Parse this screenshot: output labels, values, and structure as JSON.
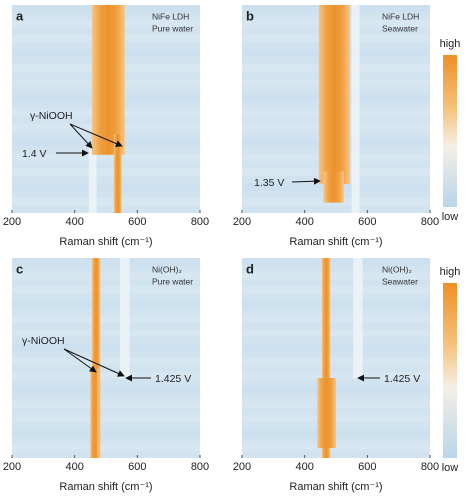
{
  "chart_data": [
    {
      "type": "heatmap",
      "panel": "a",
      "title": "NiFe LDH",
      "subtitle": "Pure water",
      "xlabel": "Raman shift (cm⁻¹)",
      "xlim": [
        200,
        800
      ],
      "xticks": [
        200,
        400,
        600,
        800
      ],
      "bands": [
        [
          455,
          560
        ],
        [
          525,
          550
        ]
      ],
      "annotations": [
        "γ-NiOOH",
        "1.4 V"
      ],
      "colorbar": [
        "high",
        "low"
      ]
    },
    {
      "type": "heatmap",
      "panel": "b",
      "title": "NiFe LDH",
      "subtitle": "Seawater",
      "xlabel": "Raman shift (cm⁻¹)",
      "xlim": [
        200,
        800
      ],
      "xticks": [
        200,
        400,
        600,
        800
      ],
      "bands": [
        [
          445,
          545
        ],
        [
          460,
          525
        ]
      ],
      "annotations": [
        "1.35 V"
      ],
      "colorbar": [
        "high",
        "low"
      ]
    },
    {
      "type": "heatmap",
      "panel": "c",
      "title": "Ni(OH)₂",
      "subtitle": "Pure water",
      "xlabel": "Raman shift (cm⁻¹)",
      "xlim": [
        200,
        800
      ],
      "xticks": [
        200,
        400,
        600,
        800
      ],
      "bands": [
        [
          455,
          482
        ],
        [
          450,
          478
        ]
      ],
      "annotations": [
        "γ-NiOOH",
        "1.425 V"
      ],
      "colorbar": [
        "high",
        "low"
      ]
    },
    {
      "type": "heatmap",
      "panel": "d",
      "title": "Ni(OH)₂",
      "subtitle": "Seawater",
      "xlabel": "Raman shift (cm⁻¹)",
      "xlim": [
        200,
        800
      ],
      "xticks": [
        200,
        400,
        600,
        800
      ],
      "bands": [
        [
          455,
          482
        ],
        [
          440,
          500
        ]
      ],
      "annotations": [
        "1.425 V"
      ],
      "colorbar": [
        "high",
        "low"
      ]
    }
  ]
}
